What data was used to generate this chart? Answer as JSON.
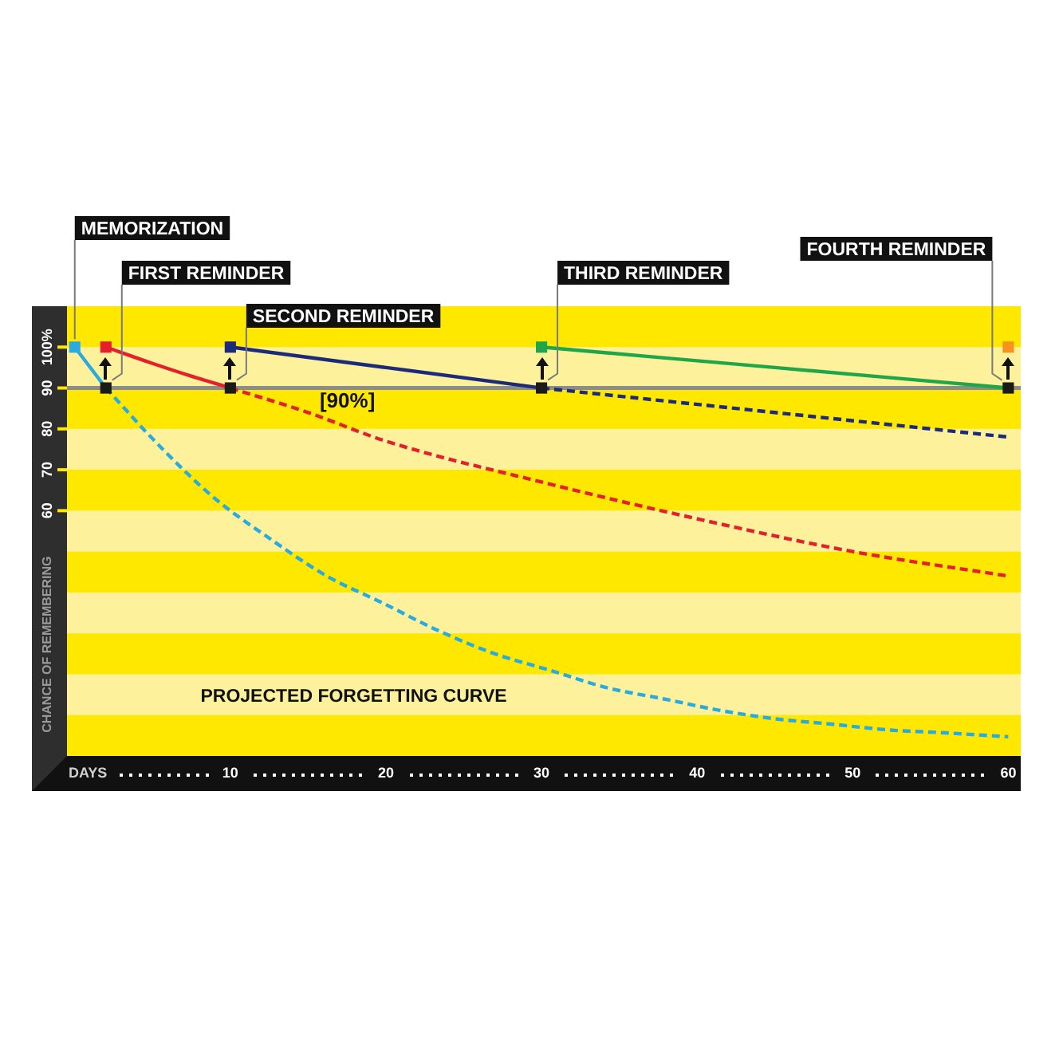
{
  "chart_data": {
    "type": "line",
    "xlabel": "DAYS",
    "ylabel": "CHANCE OF REMEMBERING",
    "xlim": [
      -0.5,
      60.8
    ],
    "ylim": [
      0,
      110
    ],
    "xticks": [
      10,
      20,
      30,
      40,
      50,
      60
    ],
    "yticks": [
      60,
      70,
      80,
      90,
      {
        "value": 100,
        "label": "100%"
      }
    ],
    "bands": [
      {
        "axis": "y",
        "from": 10,
        "to": 20,
        "color": "#fdf29b"
      },
      {
        "axis": "y",
        "from": 30,
        "to": 40,
        "color": "#fdf29b"
      },
      {
        "axis": "y",
        "from": 50,
        "to": 60,
        "color": "#fdf29b"
      },
      {
        "axis": "y",
        "from": 70,
        "to": 80,
        "color": "#fdf29b"
      },
      {
        "axis": "y",
        "from": 90,
        "to": 100,
        "color": "#fdf29b"
      }
    ],
    "ref_lines": [
      {
        "axis": "y",
        "value": 90,
        "label": "[90%]",
        "color": "#8c8c8c"
      }
    ],
    "annotations": [
      {
        "text": "MEMORIZATION",
        "x": 0,
        "y": 100
      },
      {
        "text": "FIRST REMINDER",
        "x": 2,
        "y": 90
      },
      {
        "text": "SECOND REMINDER",
        "x": 10,
        "y": 90
      },
      {
        "text": "THIRD REMINDER",
        "x": 30,
        "y": 90
      },
      {
        "text": "FOURTH REMINDER",
        "x": 60,
        "y": 90
      },
      "PROJECTED FORGETTING CURVE"
    ],
    "series": [
      {
        "color": "#29abe2",
        "x": [
          0,
          2
        ],
        "values": [
          100,
          90
        ],
        "line_style": "solid",
        "marker": "none"
      },
      {
        "color": "#29abe2",
        "x": [
          2,
          5.4,
          9,
          12.6,
          16.2,
          19.8,
          23.4,
          27,
          30.6,
          34.2,
          37.8,
          41.4,
          45,
          48.6,
          52.2,
          55.7,
          60
        ],
        "values": [
          90,
          76,
          63,
          53,
          44,
          37.4,
          30.6,
          25,
          20.9,
          16.7,
          14,
          11.2,
          9.1,
          7.8,
          6.4,
          5.7,
          4.7
        ],
        "line_style": "dashed",
        "marker": "none"
      },
      {
        "color": "#e3202b",
        "x": [
          2,
          5,
          7.4,
          10
        ],
        "values": [
          100,
          96,
          93,
          90
        ],
        "line_style": "solid",
        "marker": "none"
      },
      {
        "color": "#e3202b",
        "x": [
          10,
          15,
          20,
          30,
          40,
          50,
          60
        ],
        "values": [
          90,
          84,
          77,
          67,
          58,
          50,
          44
        ],
        "line_style": "dashed",
        "marker": "none"
      },
      {
        "color": "#1b2a7a",
        "x": [
          10,
          20,
          30
        ],
        "values": [
          100,
          95,
          90
        ],
        "line_style": "solid",
        "marker": "none"
      },
      {
        "color": "#1b2a7a",
        "x": [
          30,
          45,
          60
        ],
        "values": [
          90,
          84,
          78
        ],
        "line_style": "dashed",
        "marker": "none"
      },
      {
        "color": "#1fa64a",
        "x": [
          30,
          45,
          60
        ],
        "values": [
          100,
          95,
          90
        ],
        "line_style": "solid",
        "marker": "none"
      },
      {
        "type": "scatter",
        "colors": [
          "#29abe2",
          "#e3202b",
          "#1b2a7a",
          "#1fa64a",
          "#f6921e"
        ],
        "x": [
          0,
          2,
          10,
          30,
          60
        ],
        "values": [
          100,
          100,
          100,
          100,
          100
        ],
        "marker": "square"
      },
      {
        "type": "scatter",
        "color": "#1a1a1a",
        "x": [
          2,
          10,
          30,
          60
        ],
        "values": [
          90,
          90,
          90,
          90
        ],
        "marker": "square"
      }
    ]
  }
}
